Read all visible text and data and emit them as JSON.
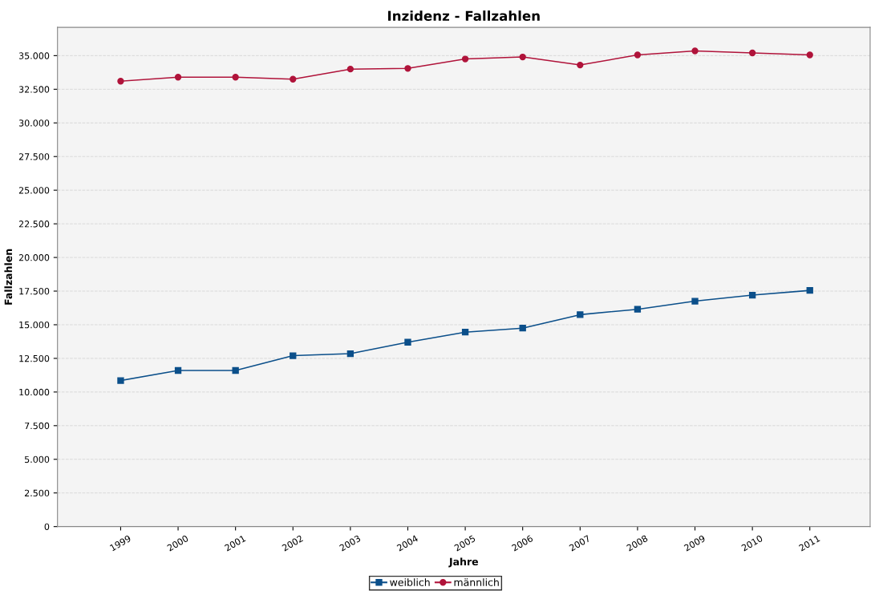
{
  "chart_data": {
    "type": "line",
    "title": "Inzidenz - Fallzahlen",
    "xlabel": "Jahre",
    "ylabel": "Fallzahlen",
    "categories": [
      "1999",
      "2000",
      "2001",
      "2002",
      "2003",
      "2004",
      "2005",
      "2006",
      "2007",
      "2008",
      "2009",
      "2010",
      "2011"
    ],
    "series": [
      {
        "name": "weiblich",
        "color": "#0b4f8a",
        "marker": "square",
        "values": [
          10850,
          11600,
          11600,
          12700,
          12850,
          13700,
          14450,
          14750,
          15750,
          16150,
          16750,
          17200,
          17550
        ]
      },
      {
        "name": "männlich",
        "color": "#b0133a",
        "marker": "circle",
        "values": [
          33100,
          33400,
          33400,
          33250,
          34000,
          34050,
          34750,
          34900,
          34300,
          35050,
          35350,
          35200,
          35050
        ]
      }
    ],
    "ylim": [
      0,
      37100
    ],
    "yticks": [
      {
        "value": 0,
        "label": "0"
      },
      {
        "value": 2500,
        "label": "2.500"
      },
      {
        "value": 5000,
        "label": "5.000"
      },
      {
        "value": 7500,
        "label": "7.500"
      },
      {
        "value": 10000,
        "label": "10.000"
      },
      {
        "value": 12500,
        "label": "12.500"
      },
      {
        "value": 15000,
        "label": "15.000"
      },
      {
        "value": 17500,
        "label": "17.500"
      },
      {
        "value": 20000,
        "label": "20.000"
      },
      {
        "value": 22500,
        "label": "22.500"
      },
      {
        "value": 25000,
        "label": "25.000"
      },
      {
        "value": 27500,
        "label": "27.500"
      },
      {
        "value": 30000,
        "label": "30.000"
      },
      {
        "value": 32500,
        "label": "32.500"
      },
      {
        "value": 35000,
        "label": "35.000"
      }
    ],
    "grid": "y",
    "legend": "bottom",
    "line_style": "solid"
  }
}
